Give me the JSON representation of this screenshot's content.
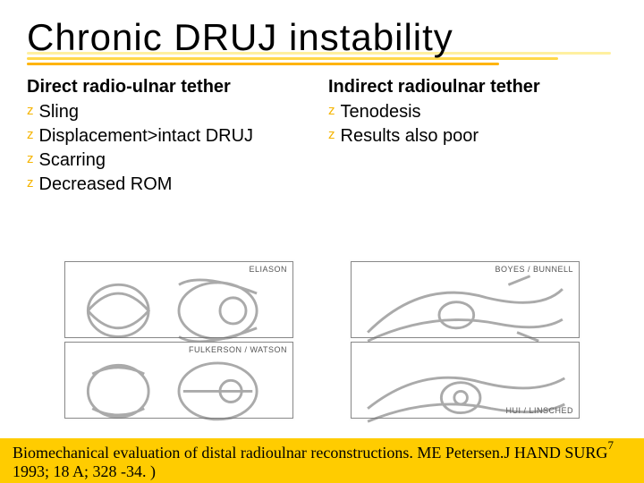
{
  "title": {
    "text": "Chronic DRUJ instability",
    "fontsize": 42
  },
  "underline": {
    "colors": [
      "#fff0a0",
      "#ffd84a",
      "#ffb400"
    ],
    "widths": [
      0.99,
      0.9,
      0.8
    ],
    "tops": [
      0,
      6,
      12
    ]
  },
  "body_fontsize": 20,
  "left": {
    "heading": "Direct radio-ulnar tether",
    "items": [
      "Sling",
      "Displacement>intact DRUJ",
      "Scarring",
      "Decreased  ROM"
    ]
  },
  "right": {
    "heading": "Indirect radioulnar tether",
    "items": [
      "Tenodesis",
      "Results also poor"
    ]
  },
  "bullet": {
    "glyph": "z",
    "color": "#f5b400"
  },
  "illus": {
    "labels": [
      "ELIASON",
      "FULKERSON / WATSON",
      "BOYES / BUNNELL",
      "HUI / LINSCHED"
    ],
    "stroke": "#666666"
  },
  "footer": {
    "bg": "#ffcc00",
    "citation": "Biomechanical evaluation of distal radioulnar reconstructions. ME Petersen.J HAND SURG 1993; 18 A; 328 -34. )",
    "fontsize": 18
  },
  "page_number": "7"
}
